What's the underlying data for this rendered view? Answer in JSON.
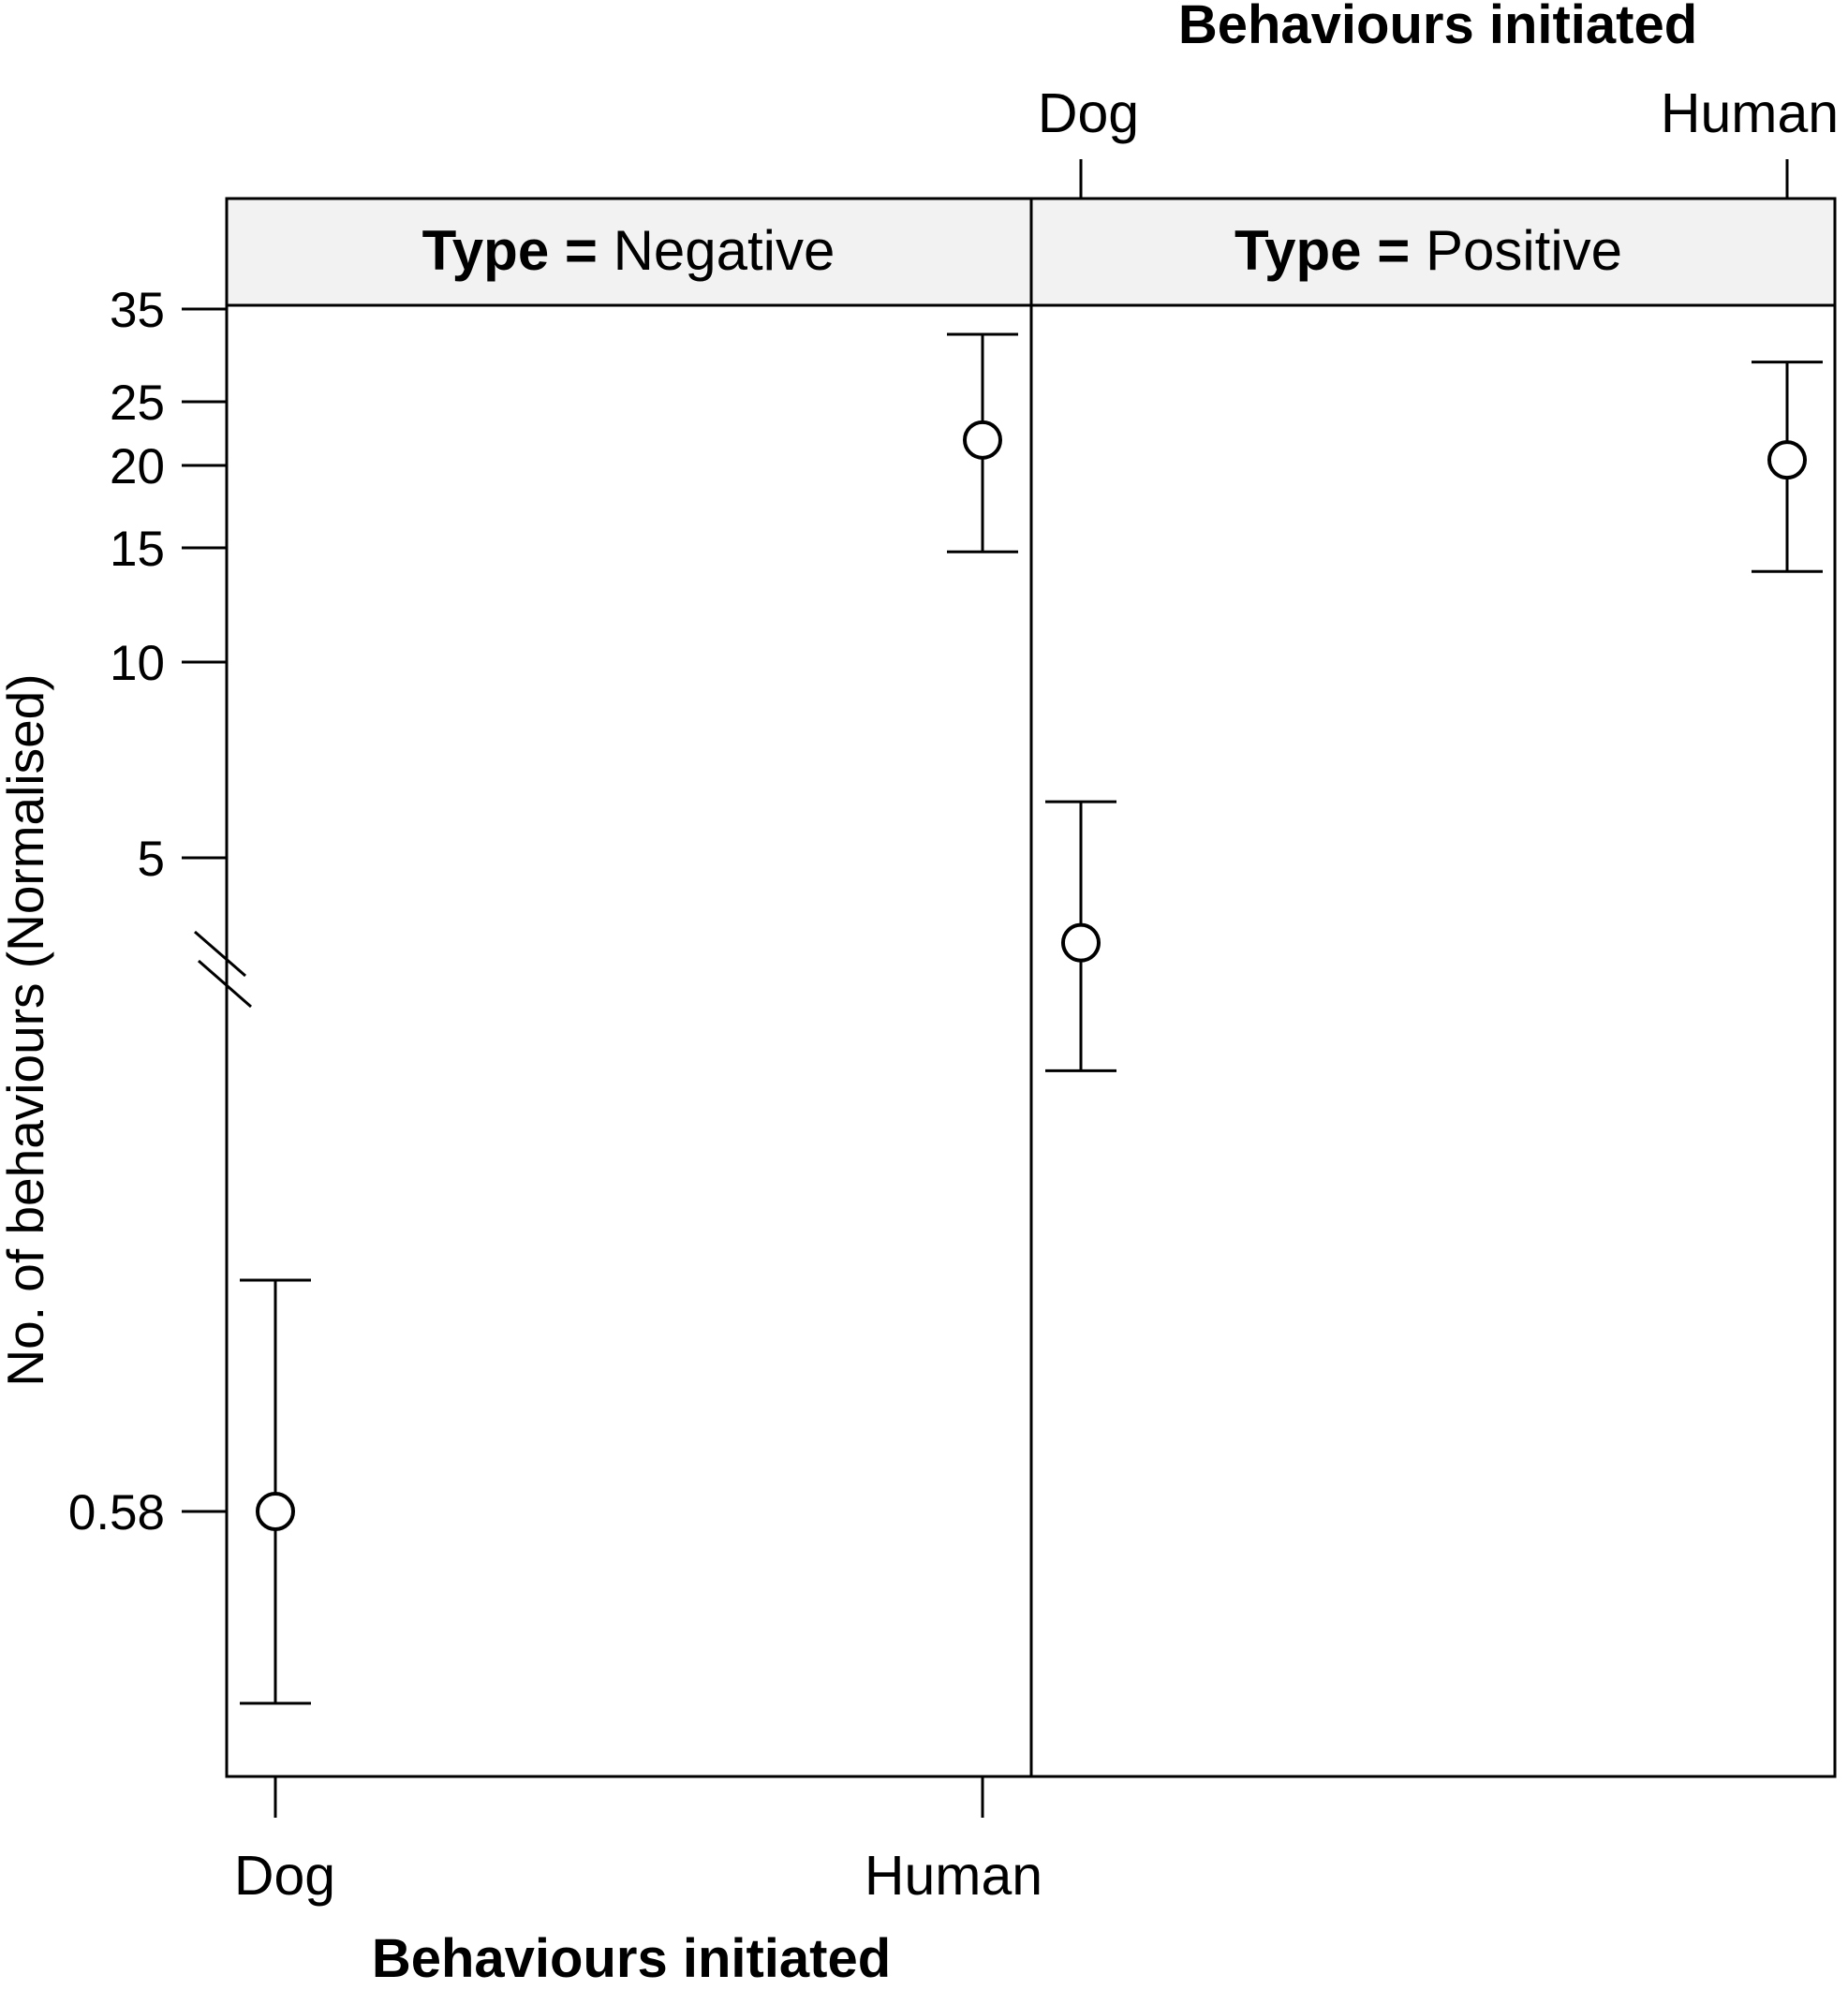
{
  "chart_data": {
    "type": "scatter",
    "xlabel": "Behaviours initiated",
    "ylabel": "No. of behaviours (Normalised)",
    "categories": [
      "Dog",
      "Human"
    ],
    "y_ticks": [
      "35",
      "25",
      "20",
      "15",
      "10",
      "5",
      "0.58"
    ],
    "axis_break": true,
    "panels": [
      {
        "strip_key": "Type = ",
        "strip_value": "Negative",
        "points": [
          {
            "x": "Dog",
            "y": 0.58,
            "lower": 0.25,
            "upper": 1.6
          },
          {
            "x": "Human",
            "y": 22,
            "lower": 14.8,
            "upper": 32
          }
        ]
      },
      {
        "strip_key": "Type = ",
        "strip_value": "Positive",
        "points": [
          {
            "x": "Dog",
            "y": 3.7,
            "lower": 2.35,
            "upper": 6.1
          },
          {
            "x": "Human",
            "y": 20.5,
            "lower": 13.8,
            "upper": 29
          }
        ]
      }
    ]
  }
}
